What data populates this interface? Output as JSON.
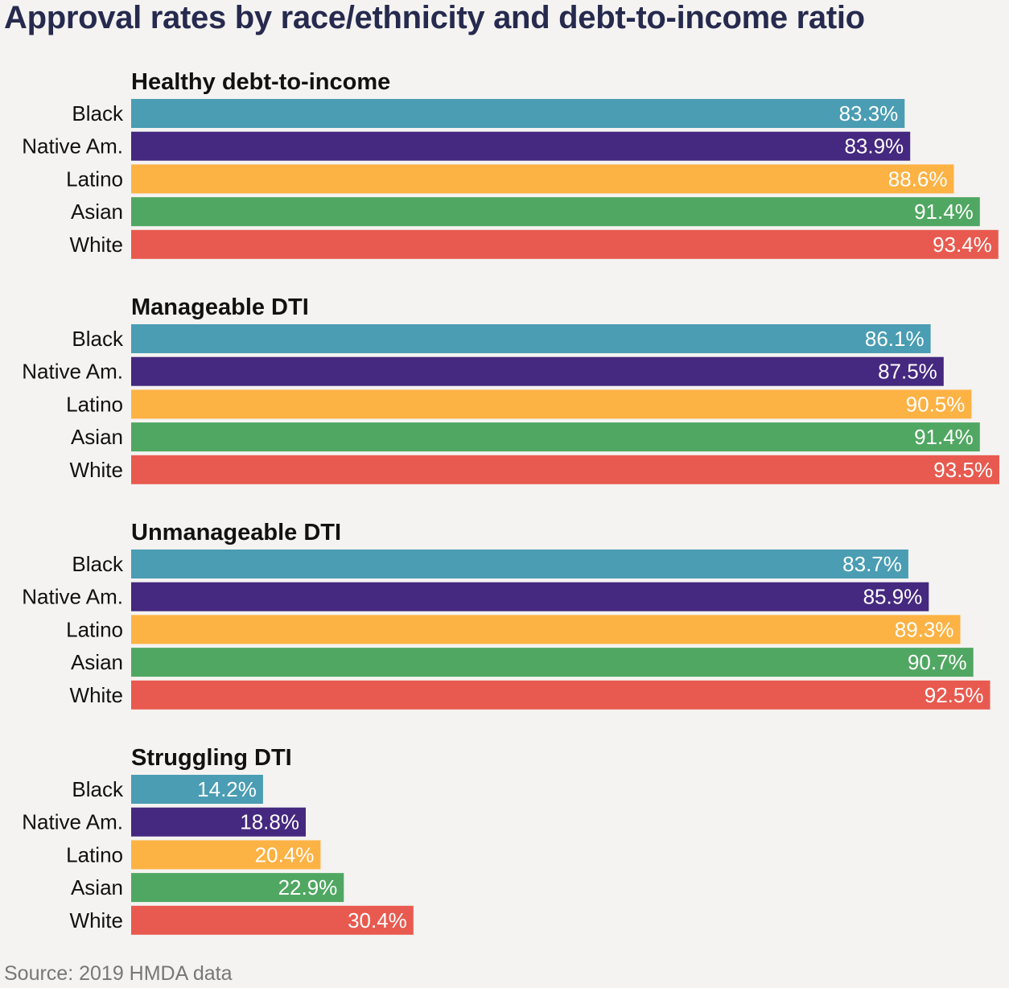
{
  "title": "Approval rates by race/ethnicity and debt-to-income ratio",
  "source": "Source: 2019 HMDA data",
  "colors": {
    "Black": "#4a9db3",
    "Native Am.": "#45287f",
    "Latino": "#fdb244",
    "Asian": "#50a762",
    "White": "#e85a4f",
    "inside_label": "#ffffff",
    "outside_label": "#111111"
  },
  "chart_data": {
    "type": "bar",
    "orientation": "horizontal",
    "categories": [
      "Black",
      "Native Am.",
      "Latino",
      "Asian",
      "White"
    ],
    "value_suffix": "%",
    "xlim": [
      0,
      93.5
    ],
    "grid": false,
    "legend": "none",
    "panels": [
      {
        "title": "Healthy debt-to-income",
        "values": [
          83.3,
          83.9,
          88.6,
          91.4,
          93.4
        ]
      },
      {
        "title": "Manageable DTI",
        "values": [
          86.1,
          87.5,
          90.5,
          91.4,
          93.5
        ]
      },
      {
        "title": "Unmanageable DTI",
        "values": [
          83.7,
          85.9,
          89.3,
          90.7,
          92.5
        ]
      },
      {
        "title": "Struggling DTI",
        "values": [
          14.2,
          18.8,
          20.4,
          22.9,
          30.4
        ]
      }
    ]
  }
}
